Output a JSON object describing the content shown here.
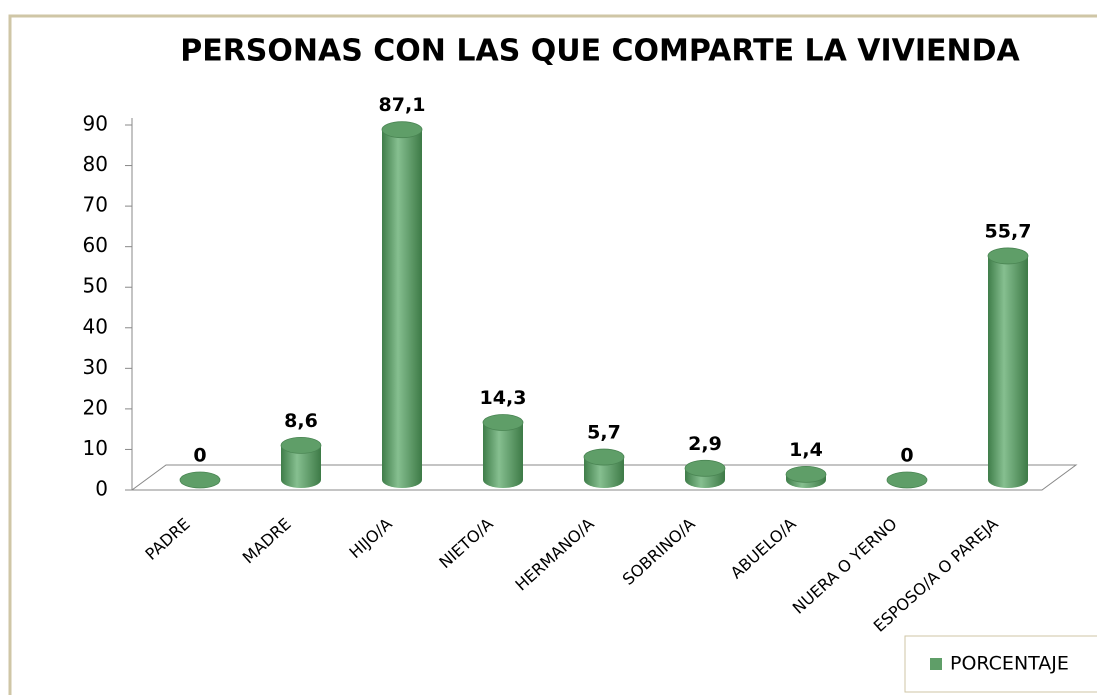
{
  "chart_data": {
    "type": "bar",
    "title": "PERSONAS CON LAS QUE COMPARTE LA VIVIENDA",
    "categories": [
      "PADRE",
      "MADRE",
      "HIJO/A",
      "NIETO/A",
      "HERMANO/A",
      "SOBRINO/A",
      "ABUELO/A",
      "NUERA O YERNO",
      "ESPOSO/A O PAREJA"
    ],
    "series": [
      {
        "name": "PORCENTAJE",
        "color": "#5f9e68",
        "values": [
          0,
          8.6,
          87.1,
          14.3,
          5.7,
          2.9,
          1.4,
          0,
          55.7
        ],
        "value_labels": [
          "0",
          "8,6",
          "87,1",
          "14,3",
          "5,7",
          "2,9",
          "1,4",
          "0",
          "55,7"
        ]
      }
    ],
    "ylim": [
      0,
      90
    ],
    "yticks": [
      0,
      10,
      20,
      30,
      40,
      50,
      60,
      70,
      80,
      90
    ],
    "legend": "bottom-right"
  }
}
